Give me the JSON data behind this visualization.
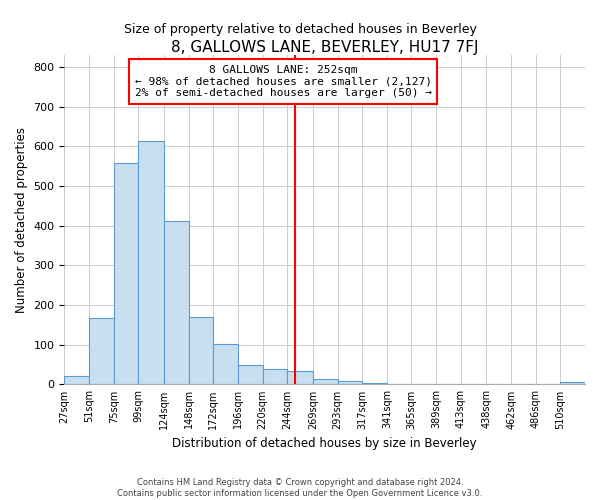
{
  "title": "8, GALLOWS LANE, BEVERLEY, HU17 7FJ",
  "subtitle": "Size of property relative to detached houses in Beverley",
  "xlabel": "Distribution of detached houses by size in Beverley",
  "ylabel": "Number of detached properties",
  "bin_labels": [
    "27sqm",
    "51sqm",
    "75sqm",
    "99sqm",
    "124sqm",
    "148sqm",
    "172sqm",
    "196sqm",
    "220sqm",
    "244sqm",
    "269sqm",
    "293sqm",
    "317sqm",
    "341sqm",
    "365sqm",
    "389sqm",
    "413sqm",
    "438sqm",
    "462sqm",
    "486sqm",
    "510sqm"
  ],
  "bar_heights": [
    20,
    168,
    557,
    614,
    413,
    170,
    101,
    50,
    40,
    33,
    14,
    8,
    3,
    1,
    1,
    0,
    0,
    0,
    0,
    0,
    5
  ],
  "bar_color": "#c8dff0",
  "bar_edge_color": "#5b9bd5",
  "vline_x_idx": 9,
  "vline_color": "red",
  "annotation_title": "8 GALLOWS LANE: 252sqm",
  "annotation_line1": "← 98% of detached houses are smaller (2,127)",
  "annotation_line2": "2% of semi-detached houses are larger (50) →",
  "annotation_box_color": "white",
  "annotation_box_edge": "red",
  "ylim": [
    0,
    830
  ],
  "yticks": [
    0,
    100,
    200,
    300,
    400,
    500,
    600,
    700,
    800
  ],
  "footer1": "Contains HM Land Registry data © Crown copyright and database right 2024.",
  "footer2": "Contains public sector information licensed under the Open Government Licence v3.0.",
  "bin_edges_sqm": [
    27,
    51,
    75,
    99,
    124,
    148,
    172,
    196,
    220,
    244,
    269,
    293,
    317,
    341,
    365,
    389,
    413,
    438,
    462,
    486,
    510,
    534
  ]
}
